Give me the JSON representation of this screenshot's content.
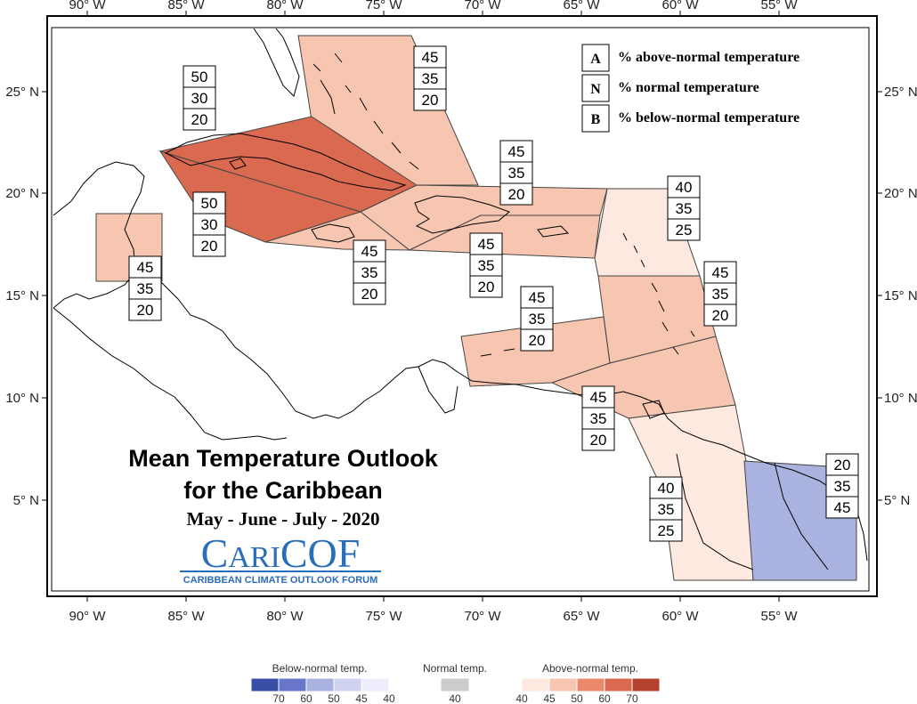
{
  "map": {
    "lon_labels": [
      "90° W",
      "85° W",
      "80° W",
      "75° W",
      "70° W",
      "65° W",
      "60° W",
      "55° W"
    ],
    "lat_labels": [
      "25° N",
      "20° N",
      "15° N",
      "10° N",
      "5° N"
    ],
    "title_line1": "Mean Temperature Outlook",
    "title_line2": "for the Caribbean",
    "period": "May - June - July - 2020",
    "logo_text": {
      "c": "C",
      "ari": "ARI",
      "cof": "COF"
    },
    "logo_subtitle": "CARIBBEAN CLIMATE OUTLOOK FORUM",
    "key": [
      {
        "letter": "A",
        "text": "% above-normal temperature"
      },
      {
        "letter": "N",
        "text": "% normal temperature"
      },
      {
        "letter": "B",
        "text": "% below-normal temperature"
      }
    ],
    "colors": {
      "above_40": "#fde9df",
      "above_45": "#f7c6b0",
      "above_50": "#e9886a",
      "above_60": "#da6a4f",
      "above_70": "#b5422f",
      "below_40": "#eeeefa",
      "below_45": "#d0d3ef",
      "below_50": "#aab2e0",
      "below_60": "#6776c8",
      "below_70": "#3a4ea8",
      "normal_40": "#cccccc",
      "land_line": "#000000",
      "region_line": "#444444"
    },
    "forecasts": [
      {
        "region": "Bahamas",
        "values": [
          "45",
          "35",
          "20"
        ]
      },
      {
        "region": "Cuba",
        "values": [
          "50",
          "30",
          "20"
        ]
      },
      {
        "region": "Cayman",
        "values": [
          "50",
          "30",
          "20"
        ]
      },
      {
        "region": "Belize",
        "values": [
          "45",
          "35",
          "20"
        ]
      },
      {
        "region": "Jamaica",
        "values": [
          "45",
          "35",
          "20"
        ]
      },
      {
        "region": "Hispaniola",
        "values": [
          "45",
          "35",
          "20"
        ]
      },
      {
        "region": "Puerto Rico",
        "values": [
          "45",
          "35",
          "20"
        ]
      },
      {
        "region": "Leeward Islands",
        "values": [
          "40",
          "35",
          "25"
        ]
      },
      {
        "region": "Windward Islands",
        "values": [
          "45",
          "35",
          "20"
        ]
      },
      {
        "region": "ABC Islands",
        "values": [
          "45",
          "35",
          "20"
        ]
      },
      {
        "region": "Trinidad",
        "values": [
          "45",
          "35",
          "20"
        ]
      },
      {
        "region": "Guyana",
        "values": [
          "40",
          "35",
          "25"
        ]
      },
      {
        "region": "Suriname French Guiana",
        "values": [
          "20",
          "35",
          "45"
        ]
      }
    ]
  },
  "scale": {
    "below_title": "Below-normal temp.",
    "normal_title": "Normal temp.",
    "above_title": "Above-normal temp.",
    "below_ticks": [
      "70",
      "60",
      "50",
      "45",
      "40"
    ],
    "normal_ticks": [
      "40"
    ],
    "above_ticks": [
      "40",
      "45",
      "50",
      "60",
      "70"
    ]
  }
}
